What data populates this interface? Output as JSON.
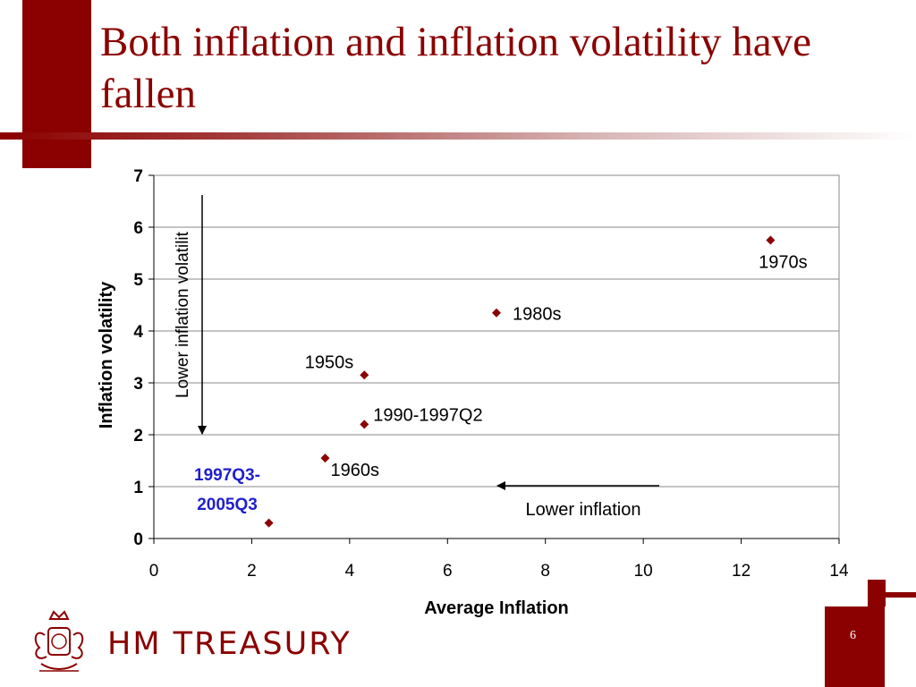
{
  "slide": {
    "title": "Both inflation and inflation volatility have fallen",
    "page_number": "6",
    "brand": "HM TREASURY",
    "accent_color": "#8b0000"
  },
  "crest": {
    "icon": "royal-crest-icon"
  },
  "chart_data": {
    "type": "scatter",
    "xlabel": "Average Inflation",
    "ylabel": "Inflation volatility",
    "xlim": [
      0,
      14
    ],
    "ylim": [
      0,
      7
    ],
    "xticks": [
      0,
      2,
      4,
      6,
      8,
      10,
      12,
      14
    ],
    "yticks": [
      0,
      1,
      2,
      3,
      4,
      5,
      6,
      7
    ],
    "grid": true,
    "marker_color": "#8b0000",
    "points": [
      {
        "label": "1950s",
        "x": 4.3,
        "y": 3.15
      },
      {
        "label": "1960s",
        "x": 3.5,
        "y": 1.55
      },
      {
        "label": "1970s",
        "x": 12.6,
        "y": 5.75
      },
      {
        "label": "1980s",
        "x": 7.0,
        "y": 4.35
      },
      {
        "label": "1990-1997Q2",
        "x": 4.3,
        "y": 2.2
      },
      {
        "label": "1997Q3-2005Q3",
        "x": 2.35,
        "y": 0.3
      }
    ],
    "highlight_label": {
      "lines": [
        "1997Q3-",
        "2005Q3"
      ],
      "color": "#1f1fcc"
    },
    "annotations": {
      "vertical_arrow_text": "Lower inflation volatilit",
      "horizontal_arrow_text": "Lower inflation"
    }
  }
}
